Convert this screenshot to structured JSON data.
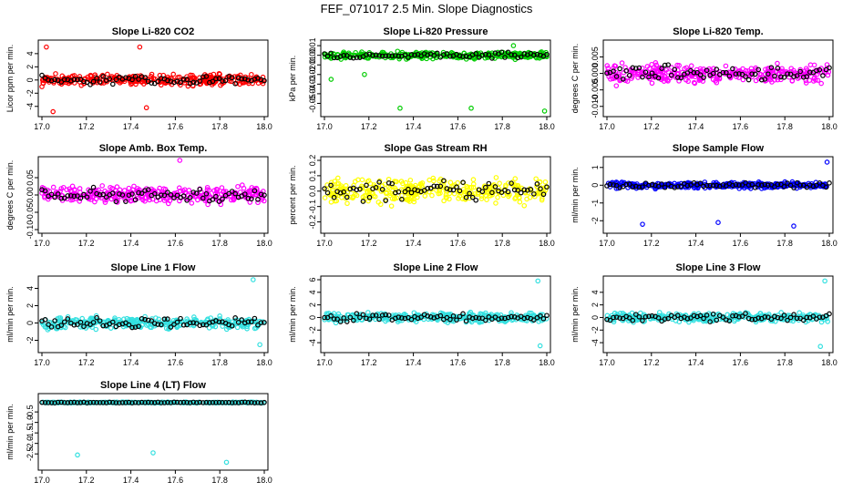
{
  "title": "FEF_071017  2.5 Min. Slope Diagnostics",
  "chart_data": [
    {
      "type": "scatter",
      "title": "Slope Li-820 CO2",
      "ylabel": "Licor ppm per min.",
      "color": "#ff0000",
      "xlim": [
        17.0,
        18.0
      ],
      "ylim": [
        -5,
        5.5
      ],
      "xticks": [
        17.0,
        17.2,
        17.4,
        17.6,
        17.8,
        18.0
      ],
      "yticks": [
        -4,
        -2,
        0,
        2,
        4
      ],
      "ytick_labels": [
        "-4",
        "-2",
        "0",
        "2",
        "4"
      ],
      "spread": 1.2,
      "outliers": [
        [
          17.02,
          5.0
        ],
        [
          17.05,
          -4.8
        ],
        [
          17.44,
          5.0
        ],
        [
          17.47,
          -4.2
        ]
      ]
    },
    {
      "type": "scatter",
      "title": "Slope Li-820 Pressure",
      "ylabel": "kPa per min.",
      "color": "#00cc00",
      "xlim": [
        17.0,
        18.0
      ],
      "ylim": [
        -0.06,
        0.012
      ],
      "xticks": [
        17.0,
        17.2,
        17.4,
        17.6,
        17.8,
        18.0
      ],
      "yticks": [
        -0.05,
        -0.04,
        -0.03,
        -0.02,
        -0.01,
        0.0,
        0.01
      ],
      "ytick_labels": [
        "-0.05",
        "-0.04",
        "-0.03",
        "-0.02",
        "-0.01",
        "0.00",
        "0.01"
      ],
      "spread": 0.005,
      "outliers": [
        [
          17.03,
          -0.025
        ],
        [
          17.18,
          -0.02
        ],
        [
          17.34,
          -0.055
        ],
        [
          17.66,
          -0.055
        ],
        [
          17.99,
          -0.058
        ],
        [
          17.85,
          0.01
        ]
      ]
    },
    {
      "type": "scatter",
      "title": "Slope Li-820 Temp.",
      "ylabel": "degrees C per min.",
      "color": "#ff00ff",
      "xlim": [
        17.0,
        18.0
      ],
      "ylim": [
        -0.012,
        0.009
      ],
      "xticks": [
        17.0,
        17.2,
        17.4,
        17.6,
        17.8,
        18.0
      ],
      "yticks": [
        -0.01,
        -0.005,
        0.0,
        0.005
      ],
      "ytick_labels": [
        "-0.010",
        "-0.005",
        "0.000",
        "0.005"
      ],
      "spread": 0.004,
      "outliers": []
    },
    {
      "type": "scatter",
      "title": "Slope Amb. Box Temp.",
      "ylabel": "degrees C per min.",
      "color": "#ff00ff",
      "xlim": [
        17.0,
        18.0
      ],
      "ylim": [
        -0.1,
        0.1
      ],
      "xticks": [
        17.0,
        17.2,
        17.4,
        17.6,
        17.8,
        18.0
      ],
      "yticks": [
        -0.1,
        -0.05,
        0.0,
        0.05
      ],
      "ytick_labels": [
        "-0.10",
        "-0.05",
        "0.00",
        "0.05"
      ],
      "spread": 0.035,
      "outliers": [
        [
          17.62,
          0.1
        ]
      ]
    },
    {
      "type": "scatter",
      "title": "Slope Gas Stream RH",
      "ylabel": "percent per min.",
      "color": "#ffff00",
      "xlim": [
        17.0,
        18.0
      ],
      "ylim": [
        -0.25,
        0.2
      ],
      "xticks": [
        17.0,
        17.2,
        17.4,
        17.6,
        17.8,
        18.0
      ],
      "yticks": [
        -0.2,
        -0.1,
        0.0,
        0.1,
        0.2
      ],
      "ytick_labels": [
        "-0.2",
        "-0.1",
        "0.0",
        "0.1",
        "0.2"
      ],
      "spread": 0.11,
      "outliers": []
    },
    {
      "type": "scatter",
      "title": "Slope Sample Flow",
      "ylabel": "ml/min per min.",
      "color": "#0000ff",
      "xlim": [
        17.0,
        18.0
      ],
      "ylim": [
        -2.5,
        1.4
      ],
      "xticks": [
        17.0,
        17.2,
        17.4,
        17.6,
        17.8,
        18.0
      ],
      "yticks": [
        -2,
        -1,
        0,
        1
      ],
      "ytick_labels": [
        "-2",
        "-1",
        "0",
        "1"
      ],
      "spread": 0.25,
      "outliers": [
        [
          17.16,
          -2.2
        ],
        [
          17.5,
          -2.1
        ],
        [
          17.84,
          -2.3
        ],
        [
          17.99,
          1.3
        ]
      ]
    },
    {
      "type": "scatter",
      "title": "Slope Line 1 Flow",
      "ylabel": "ml/min per min.",
      "color": "#33e0e0",
      "xlim": [
        17.0,
        18.0
      ],
      "ylim": [
        -3,
        5
      ],
      "xticks": [
        17.0,
        17.2,
        17.4,
        17.6,
        17.8,
        18.0
      ],
      "yticks": [
        -2,
        0,
        2,
        4
      ],
      "ytick_labels": [
        "-2",
        "0",
        "2",
        "4"
      ],
      "spread": 0.9,
      "outliers": [
        [
          17.95,
          5.0
        ],
        [
          17.98,
          -2.5
        ]
      ]
    },
    {
      "type": "scatter",
      "title": "Slope Line 2 Flow",
      "ylabel": "ml/min per min.",
      "color": "#33e0e0",
      "xlim": [
        17.0,
        18.0
      ],
      "ylim": [
        -5,
        6
      ],
      "xticks": [
        17.0,
        17.2,
        17.4,
        17.6,
        17.8,
        18.0
      ],
      "yticks": [
        -4,
        -2,
        0,
        2,
        4,
        6
      ],
      "ytick_labels": [
        "-4",
        "-2",
        "0",
        "2",
        "4",
        "6"
      ],
      "spread": 1.0,
      "outliers": [
        [
          17.96,
          5.8
        ],
        [
          17.97,
          -4.5
        ]
      ]
    },
    {
      "type": "scatter",
      "title": "Slope Line 3 Flow",
      "ylabel": "ml/min per min.",
      "color": "#33e0e0",
      "xlim": [
        17.0,
        18.0
      ],
      "ylim": [
        -5,
        6
      ],
      "xticks": [
        17.0,
        17.2,
        17.4,
        17.6,
        17.8,
        18.0
      ],
      "yticks": [
        -4,
        -2,
        0,
        2,
        4
      ],
      "ytick_labels": [
        "-4",
        "-2",
        "0",
        "2",
        "4"
      ],
      "spread": 1.0,
      "outliers": [
        [
          17.98,
          5.8
        ],
        [
          17.96,
          -4.6
        ]
      ]
    },
    {
      "type": "scatter",
      "title": "Slope Line 4 (LT) Flow",
      "ylabel": "ml/min per min.",
      "color": "#33e0e0",
      "xlim": [
        17.0,
        18.0
      ],
      "ylim": [
        -3.1,
        0.2
      ],
      "xticks": [
        17.0,
        17.2,
        17.4,
        17.6,
        17.8,
        18.0
      ],
      "yticks": [
        -2.5,
        -2.0,
        -1.5,
        -1.0,
        -0.5
      ],
      "ytick_labels": [
        "-2.5",
        "-2.0",
        "-1.5",
        "-1.0",
        "-0.5"
      ],
      "spread": 0.03,
      "outliers": [
        [
          17.16,
          -2.55
        ],
        [
          17.5,
          -2.45
        ],
        [
          17.83,
          -2.9
        ]
      ]
    }
  ]
}
